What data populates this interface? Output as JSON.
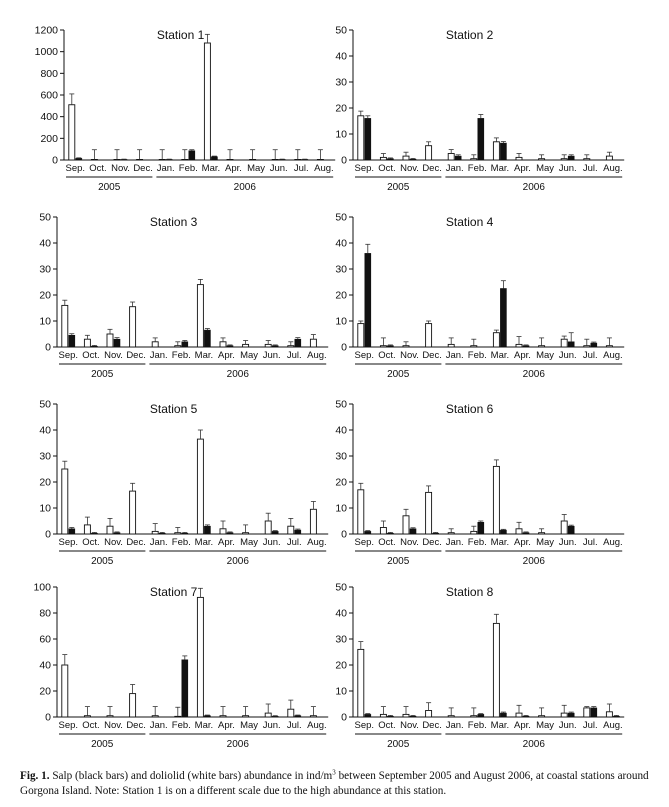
{
  "caption": {
    "label": "Fig. 1.",
    "text_before_sup": " Salp (black bars) and doliolid (white bars) abundance in ind/m",
    "sup": "3",
    "text_after_sup": " between September 2005 and August 2006, at coastal stations around Gorgona Island. Note: Station 1 is on a different scale due to the high abundance at this station."
  },
  "chart_data": [
    {
      "type": "bar",
      "title": "Station 1",
      "categories": [
        "Sep.",
        "Oct.",
        "Nov.",
        "Dec.",
        "Jan.",
        "Feb.",
        "Mar.",
        "Apr.",
        "May",
        "Jun.",
        "Jul.",
        "Aug."
      ],
      "years": [
        {
          "label": "2005",
          "from": 0,
          "to": 3
        },
        {
          "label": "2006",
          "from": 4,
          "to": 11
        }
      ],
      "yticks": [
        0,
        200,
        400,
        600,
        800,
        1000,
        1200
      ],
      "ylim": [
        0,
        1200
      ],
      "series": [
        {
          "color": "#ffffff",
          "values": [
            510,
            5,
            5,
            5,
            5,
            5,
            1080,
            5,
            5,
            5,
            5,
            5
          ],
          "errors": [
            100,
            90,
            90,
            90,
            90,
            90,
            80,
            90,
            90,
            90,
            90,
            90
          ]
        },
        {
          "color": "#111111",
          "values": [
            15,
            0,
            5,
            0,
            5,
            85,
            30,
            0,
            0,
            5,
            5,
            0
          ],
          "errors": [
            5,
            0,
            3,
            0,
            3,
            10,
            6,
            0,
            0,
            3,
            3,
            0
          ]
        }
      ]
    },
    {
      "type": "bar",
      "title": "Station 2",
      "categories": [
        "Sep.",
        "Oct.",
        "Nov.",
        "Dec.",
        "Jan.",
        "Feb.",
        "Mar.",
        "Apr.",
        "May",
        "Jun.",
        "Jul.",
        "Aug."
      ],
      "years": [
        {
          "label": "2005",
          "from": 0,
          "to": 3
        },
        {
          "label": "2006",
          "from": 4,
          "to": 11
        }
      ],
      "yticks": [
        0,
        10,
        20,
        30,
        40,
        50
      ],
      "ylim": [
        0,
        50
      ],
      "series": [
        {
          "color": "#ffffff",
          "values": [
            17,
            1,
            1.5,
            5.5,
            2.5,
            0.5,
            7,
            1,
            0.5,
            0.5,
            0.5,
            1.5
          ],
          "errors": [
            1.8,
            1.5,
            1.5,
            1.5,
            1.5,
            1.5,
            1.5,
            1.5,
            1.5,
            1.5,
            1.5,
            1.5
          ]
        },
        {
          "color": "#111111",
          "values": [
            16,
            0.5,
            0.3,
            0,
            1.5,
            16,
            6.5,
            0,
            0,
            1.5,
            0,
            0
          ],
          "errors": [
            1,
            0.3,
            0.3,
            0,
            0.5,
            1.5,
            0.6,
            0,
            0,
            0.5,
            0,
            0
          ]
        }
      ]
    },
    {
      "type": "bar",
      "title": "Station 3",
      "categories": [
        "Sep.",
        "Oct.",
        "Nov.",
        "Dec.",
        "Jan.",
        "Feb.",
        "Mar.",
        "Apr.",
        "May",
        "Jun.",
        "Jul.",
        "Aug."
      ],
      "years": [
        {
          "label": "2005",
          "from": 0,
          "to": 3
        },
        {
          "label": "2006",
          "from": 4,
          "to": 11
        }
      ],
      "yticks": [
        0,
        10,
        20,
        30,
        40,
        50
      ],
      "ylim": [
        0,
        50
      ],
      "series": [
        {
          "color": "#ffffff",
          "values": [
            16,
            3,
            5,
            15.5,
            2,
            0.5,
            24,
            2,
            1,
            1,
            0.5,
            3
          ],
          "errors": [
            2,
            1.5,
            1.8,
            1.8,
            1.5,
            1.5,
            2,
            1.5,
            1.5,
            1.5,
            1.5,
            1.8
          ]
        },
        {
          "color": "#111111",
          "values": [
            4.5,
            0.3,
            3,
            0,
            0,
            2,
            6.5,
            0.5,
            0,
            0.5,
            3,
            0
          ],
          "errors": [
            0.6,
            0.3,
            0.6,
            0,
            0,
            0.5,
            0.6,
            0.3,
            0,
            0.3,
            0.6,
            0
          ]
        }
      ]
    },
    {
      "type": "bar",
      "title": "Station 4",
      "categories": [
        "Sep.",
        "Oct.",
        "Nov.",
        "Dec.",
        "Jan.",
        "Feb.",
        "Mar.",
        "Apr.",
        "May",
        "Jun.",
        "Jul.",
        "Aug."
      ],
      "years": [
        {
          "label": "2005",
          "from": 0,
          "to": 3
        },
        {
          "label": "2006",
          "from": 4,
          "to": 11
        }
      ],
      "yticks": [
        0,
        10,
        20,
        30,
        40,
        50
      ],
      "ylim": [
        0,
        50
      ],
      "series": [
        {
          "color": "#ffffff",
          "values": [
            9,
            0.5,
            0.5,
            9,
            1,
            0.5,
            5.5,
            1,
            0.5,
            3,
            0.5,
            0.5
          ],
          "errors": [
            1,
            3,
            1.5,
            1,
            2.5,
            2.5,
            1,
            3,
            3,
            1.2,
            2.5,
            3
          ]
        },
        {
          "color": "#111111",
          "values": [
            36,
            0.5,
            0,
            0,
            0,
            0,
            22.5,
            0.5,
            0,
            2,
            1.5,
            0
          ],
          "errors": [
            3.5,
            0.3,
            0,
            0,
            0,
            0,
            3,
            0.3,
            0,
            3.5,
            0.4,
            0
          ]
        }
      ]
    },
    {
      "type": "bar",
      "title": "Station 5",
      "categories": [
        "Sep.",
        "Oct.",
        "Nov.",
        "Dec.",
        "Jan.",
        "Feb.",
        "Mar.",
        "Apr.",
        "May",
        "Jun.",
        "Jul.",
        "Aug."
      ],
      "years": [
        {
          "label": "2005",
          "from": 0,
          "to": 3
        },
        {
          "label": "2006",
          "from": 4,
          "to": 11
        }
      ],
      "yticks": [
        0,
        10,
        20,
        30,
        40,
        50
      ],
      "ylim": [
        0,
        50
      ],
      "series": [
        {
          "color": "#ffffff",
          "values": [
            25,
            3.5,
            3,
            16.5,
            1,
            0.5,
            36.5,
            2,
            0.5,
            5,
            3,
            9.5
          ],
          "errors": [
            3,
            3,
            3,
            3,
            3,
            2,
            3.5,
            3,
            3,
            3,
            3,
            3
          ]
        },
        {
          "color": "#111111",
          "values": [
            2,
            0.3,
            0.5,
            0,
            0.3,
            0.3,
            3,
            0.5,
            0,
            1,
            1.5,
            0
          ],
          "errors": [
            0.5,
            0.3,
            0.3,
            0,
            0.3,
            0.3,
            0.5,
            0.3,
            0,
            0.3,
            0.4,
            0
          ]
        }
      ]
    },
    {
      "type": "bar",
      "title": "Station 6",
      "categories": [
        "Sep.",
        "Oct.",
        "Nov.",
        "Dec.",
        "Jan.",
        "Feb.",
        "Mar.",
        "Apr.",
        "May",
        "Jun.",
        "Jul.",
        "Aug."
      ],
      "years": [
        {
          "label": "2005",
          "from": 0,
          "to": 3
        },
        {
          "label": "2006",
          "from": 4,
          "to": 11
        }
      ],
      "yticks": [
        0,
        10,
        20,
        30,
        40,
        50
      ],
      "ylim": [
        0,
        50
      ],
      "series": [
        {
          "color": "#ffffff",
          "values": [
            17,
            2.5,
            7,
            16,
            0.5,
            1,
            26,
            2,
            0.5,
            5,
            0,
            0
          ],
          "errors": [
            2.5,
            2.5,
            2.5,
            2.5,
            1.5,
            2,
            2.5,
            2.5,
            1.5,
            2.5,
            0,
            0
          ]
        },
        {
          "color": "#111111",
          "values": [
            1,
            0.3,
            2,
            0.3,
            0,
            4.5,
            1.5,
            0.5,
            0,
            3,
            0,
            0
          ],
          "errors": [
            0.3,
            0.3,
            0.4,
            0.3,
            0,
            0.5,
            0.3,
            0.3,
            0,
            0.4,
            0,
            0
          ]
        }
      ]
    },
    {
      "type": "bar",
      "title": "Station 7",
      "categories": [
        "Sep.",
        "Oct.",
        "Nov.",
        "Dec.",
        "Jan.",
        "Feb.",
        "Mar.",
        "Apr.",
        "May",
        "Jun.",
        "Jul.",
        "Aug."
      ],
      "years": [
        {
          "label": "2005",
          "from": 0,
          "to": 3
        },
        {
          "label": "2006",
          "from": 4,
          "to": 11
        }
      ],
      "yticks": [
        0,
        20,
        40,
        60,
        80,
        100
      ],
      "ylim": [
        0,
        100
      ],
      "series": [
        {
          "color": "#ffffff",
          "values": [
            40,
            1,
            1,
            18,
            1,
            0.5,
            92,
            1,
            1,
            3,
            6,
            1
          ],
          "errors": [
            8,
            7,
            7,
            7,
            7,
            7,
            7,
            7,
            7,
            7,
            7,
            7
          ]
        },
        {
          "color": "#111111",
          "values": [
            0,
            0,
            0,
            0,
            0,
            44,
            1,
            0,
            0,
            0.5,
            1,
            0
          ],
          "errors": [
            0,
            0,
            0,
            0,
            0,
            3,
            0.5,
            0,
            0,
            0.5,
            0.5,
            0
          ]
        }
      ]
    },
    {
      "type": "bar",
      "title": "Station 8",
      "categories": [
        "Sep.",
        "Oct.",
        "Nov.",
        "Dec.",
        "Jan.",
        "Feb.",
        "Mar.",
        "Apr.",
        "May",
        "Jun.",
        "Jul.",
        "Aug."
      ],
      "years": [
        {
          "label": "2005",
          "from": 0,
          "to": 3
        },
        {
          "label": "2006",
          "from": 4,
          "to": 11
        }
      ],
      "yticks": [
        0,
        10,
        20,
        30,
        40,
        50
      ],
      "ylim": [
        0,
        50
      ],
      "series": [
        {
          "color": "#ffffff",
          "values": [
            26,
            1,
            1,
            2.5,
            0.5,
            0.5,
            36,
            1.5,
            0.5,
            1.5,
            3.5,
            2
          ],
          "errors": [
            3,
            3,
            3,
            3,
            3,
            3,
            3.5,
            3,
            3,
            3,
            0.5,
            3
          ]
        },
        {
          "color": "#111111",
          "values": [
            1,
            0.3,
            0.3,
            0,
            0,
            1,
            1.5,
            0.3,
            0,
            1.5,
            3.5,
            0.3
          ],
          "errors": [
            0.3,
            0.3,
            0.3,
            0,
            0,
            0.3,
            0.4,
            0.3,
            0,
            0.4,
            0.5,
            0.3
          ]
        }
      ]
    }
  ]
}
